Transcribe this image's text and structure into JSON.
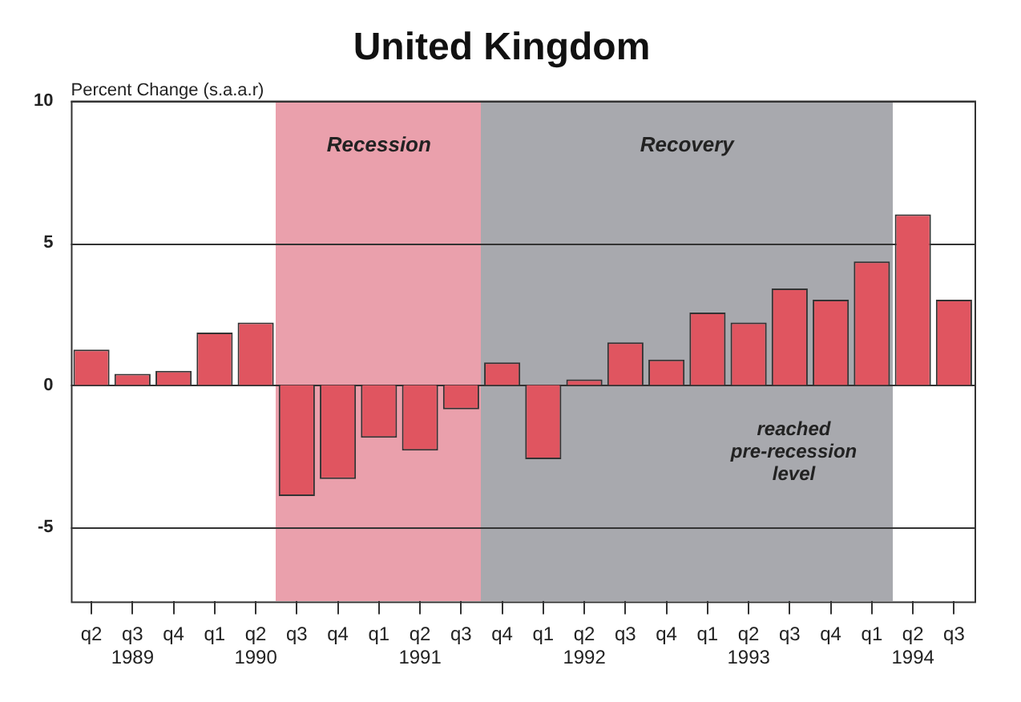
{
  "chart_data": {
    "type": "bar",
    "title": "United Kingdom",
    "ylabel": "Percent Change (s.a.a.r)",
    "categories": [
      "q2",
      "q3\n1989",
      "q4",
      "q1",
      "q2\n1990",
      "q3",
      "q4",
      "q1",
      "q2\n1991",
      "q3",
      "q4",
      "q1",
      "q2\n1992",
      "q3",
      "q4",
      "q1",
      "q2\n1993",
      "q3",
      "q4",
      "q1",
      "q2\n1994",
      "q3"
    ],
    "values": [
      1.25,
      0.4,
      0.5,
      1.85,
      2.2,
      -3.9,
      -3.3,
      -1.85,
      -2.3,
      -0.85,
      0.8,
      -2.6,
      0.2,
      1.5,
      0.9,
      2.55,
      2.2,
      3.4,
      3.0,
      4.35,
      6.0,
      3.0
    ],
    "color": "#e05560",
    "ylim": [
      -7.6,
      10
    ],
    "yticks": [
      -5,
      0,
      5,
      10
    ],
    "grid": "y",
    "annotations": [
      "Recession",
      "Recovery",
      "reached\npre-recession\nlevel"
    ]
  }
}
